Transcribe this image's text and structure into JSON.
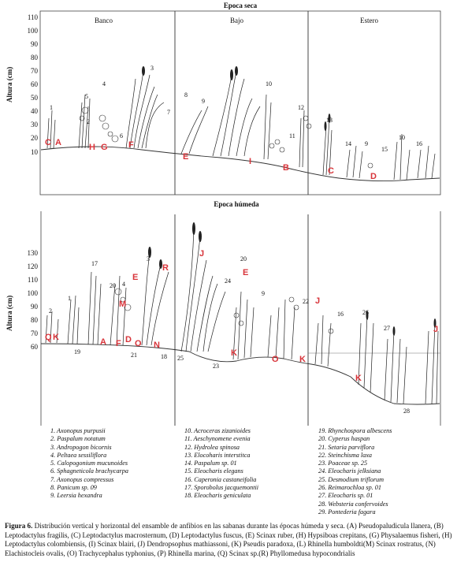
{
  "top_panel": {
    "title": "Epoca seca",
    "y_label": "Altura (cm)",
    "y_ticks": [
      "110",
      "100",
      "90",
      "80",
      "70",
      "60",
      "50",
      "40",
      "30",
      "20",
      "10"
    ],
    "zones": [
      "Banco",
      "Bajo",
      "Estero"
    ],
    "plant_numbers": [
      "1",
      "5",
      "4",
      "2",
      "6",
      "3",
      "7",
      "8",
      "9",
      "10",
      "11",
      "12",
      "13",
      "14",
      "9",
      "15",
      "10",
      "16"
    ],
    "frog_letters": [
      "C",
      "A",
      "H",
      "G",
      "F",
      "E",
      "I",
      "B",
      "C",
      "D"
    ]
  },
  "bottom_panel": {
    "title": "Epoca húmeda",
    "y_label": "Altura (cm)",
    "y_ticks": [
      "130",
      "120",
      "110",
      "100",
      "90",
      "80",
      "70",
      "60"
    ],
    "plant_numbers": [
      "2",
      "1",
      "19",
      "17",
      "20",
      "4",
      "21",
      "3",
      "18",
      "25",
      "23",
      "24",
      "20",
      "9",
      "22",
      "16",
      "26",
      "27",
      "28"
    ],
    "frog_letters": [
      "Q",
      "K",
      "A",
      "F",
      "D",
      "O",
      "N",
      "E",
      "M",
      "R",
      "J",
      "K",
      "E",
      "O",
      "K",
      "J",
      "J",
      "K"
    ]
  },
  "legend": {
    "col1": [
      "1. Axonopus purpusii",
      "2. Paspalum notatum",
      "3. Andropogon bicornis",
      "4. Peltaea sessiliflora",
      "5. Calopogonium mucunoides",
      "6. Sphagneticola brachycarpa",
      "7. Axonopus compressus",
      "8. Panicum sp. 09",
      "9. Leersia hexandra"
    ],
    "col2": [
      "10. Acroceras zizanioides",
      "11. Aeschynomene evenia",
      "12. Hydrolea spinosa",
      "13. Elocoharis interstitca",
      "14. Paspalum sp. 01",
      "15. Eleocharis elegans",
      "16. Caperonia castaneifolia",
      "17. Sporobolus jacquemontii",
      "18. Eleocharis geniculata"
    ],
    "col3": [
      "19. Rhynchospora albescens",
      "20. Cyperus haspan",
      "21. Setaria parviflora",
      "22. Steinchisma laxa",
      "23. Poaceae sp. 25",
      "24. Eleocharis jelksiana",
      "25. Desmodium triflorum",
      "26. Reimarochloa sp. 01",
      "27. Eleocharis sp. 01",
      "28. Websteria confervoides",
      "29. Pontederia fagara"
    ]
  },
  "caption": {
    "label": "Figura 6.",
    "text": " Distribución vertical y horizontal del ensamble de anfibios en las sabanas durante las épocas húmeda y seca. (A) Pseudopaludicula llanera, (B) Leptodactylus fragilis, (C) Leptodactylus macrosternum, (D) Leptodactylus fuscus, (E) Scinax ruber, (H) Hypsiboas crepitans, (G) Physalaemus fisheri, (H) Leptodactylus colombiensis, (I) Scinax blairi, (J) Dendropsophus mathiassoni, (K) Pseudis paradoxa, (L) Rhinella humboldti(M) Scinax rostratus, (N) Elachistocleis ovalis, (O) Trachycephalus typhonius, (P) Rhinella marina, (Q) Scinax sp.(R) Phyllomedusa hypocondrialis"
  }
}
